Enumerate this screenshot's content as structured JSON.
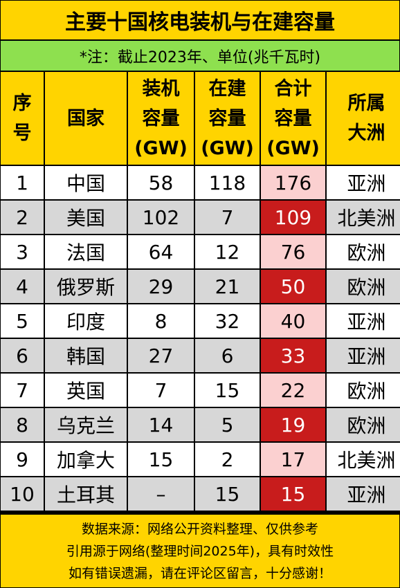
{
  "title": "主要十国核电装机与在建容量",
  "note": "*注：截止2023年、单位(兆千瓦时)",
  "headers": {
    "rank": [
      "序",
      "号"
    ],
    "country": [
      "国家"
    ],
    "installed": [
      "装机",
      "容量",
      "(GW)"
    ],
    "construction": [
      "在建",
      "容量",
      "(GW)"
    ],
    "total": [
      "合计",
      "容量",
      "(GW)"
    ],
    "continent": [
      "所属",
      "大洲"
    ]
  },
  "rows": [
    {
      "rank": "1",
      "country": "中国",
      "installed": "58",
      "construction": "118",
      "total": "176",
      "continent": "亚洲"
    },
    {
      "rank": "2",
      "country": "美国",
      "installed": "102",
      "construction": "7",
      "total": "109",
      "continent": "北美洲"
    },
    {
      "rank": "3",
      "country": "法国",
      "installed": "64",
      "construction": "12",
      "total": "76",
      "continent": "欧洲"
    },
    {
      "rank": "4",
      "country": "俄罗斯",
      "installed": "29",
      "construction": "21",
      "total": "50",
      "continent": "欧洲"
    },
    {
      "rank": "5",
      "country": "印度",
      "installed": "8",
      "construction": "32",
      "total": "40",
      "continent": "亚洲"
    },
    {
      "rank": "6",
      "country": "韩国",
      "installed": "27",
      "construction": "6",
      "total": "33",
      "continent": "亚洲"
    },
    {
      "rank": "7",
      "country": "英国",
      "installed": "7",
      "construction": "15",
      "total": "22",
      "continent": "欧洲"
    },
    {
      "rank": "8",
      "country": "乌克兰",
      "installed": "14",
      "construction": "5",
      "total": "19",
      "continent": "欧洲"
    },
    {
      "rank": "9",
      "country": "加拿大",
      "installed": "15",
      "construction": "2",
      "total": "17",
      "continent": "北美洲"
    },
    {
      "rank": "10",
      "country": "土耳其",
      "installed": "–",
      "construction": "15",
      "total": "15",
      "continent": "亚洲"
    }
  ],
  "footer": [
    "数据来源：网络公开资料整理、仅供参考",
    "引用源于网络(整理时间2025年)，具有时效性",
    "如有错误遗漏，请在评论区留言，十分感谢！"
  ],
  "colors": {
    "header_yellow": "#ffd400",
    "note_green": "#8ee04f",
    "total_light": "#fbd0d0",
    "total_dark": "#c81c1c",
    "row_gray": "#d7d7d7"
  }
}
